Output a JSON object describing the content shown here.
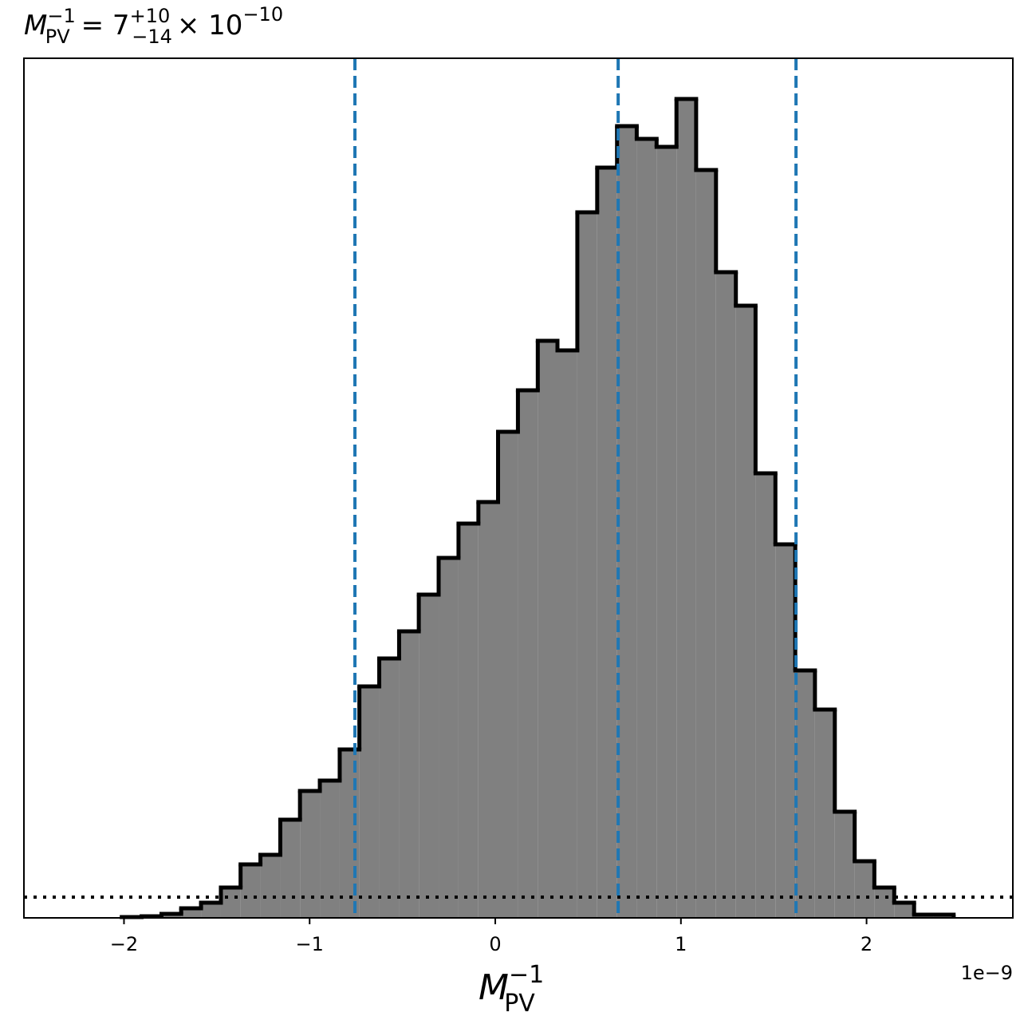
{
  "chart_data": {
    "type": "histogram",
    "title": {
      "symbol": "M",
      "sup": "−1",
      "sub": "PV",
      "eq": "= 7",
      "plus": "+10",
      "minus": "−14",
      "times": "× 10",
      "exp": "−10"
    },
    "xlabel": {
      "symbol": "M",
      "sup": "−1",
      "sub": "PV"
    },
    "x_offset_label": "1e−9",
    "bins": [
      -2.012,
      -1.905,
      -1.798,
      -1.692,
      -1.585,
      -1.478,
      -1.372,
      -1.265,
      -1.158,
      -1.052,
      -0.945,
      -0.838,
      -0.732,
      -0.625,
      -0.518,
      -0.412,
      -0.305,
      -0.198,
      -0.091,
      0.015,
      0.122,
      0.229,
      0.335,
      0.442,
      0.549,
      0.656,
      0.762,
      0.869,
      0.976,
      1.082,
      1.189,
      1.296,
      1.402,
      1.509,
      1.616,
      1.722,
      1.829,
      1.936,
      2.042,
      2.149,
      2.256,
      2.362,
      2.469
    ],
    "values": [
      1,
      2,
      5,
      12,
      19,
      38,
      67,
      79,
      123,
      159,
      172,
      211,
      290,
      325,
      359,
      405,
      451,
      494,
      521,
      609,
      661,
      723,
      711,
      884,
      940,
      992,
      976,
      966,
      1026,
      937,
      809,
      767,
      557,
      468,
      310,
      261,
      133,
      71,
      38,
      19,
      4,
      4
    ],
    "color": "#808080",
    "edge_color": "#000000",
    "xlim": [
      -2.539,
      2.788
    ],
    "ylim": [
      0,
      1077
    ],
    "xticks": [
      {
        "value": -2,
        "label": "−2"
      },
      {
        "value": -1,
        "label": "−1"
      },
      0,
      1,
      2
    ],
    "vlines": [
      -0.756,
      0.662,
      1.62
    ],
    "vline_color": "#1f77b4",
    "hline": 26,
    "hline_color": "#000000"
  }
}
